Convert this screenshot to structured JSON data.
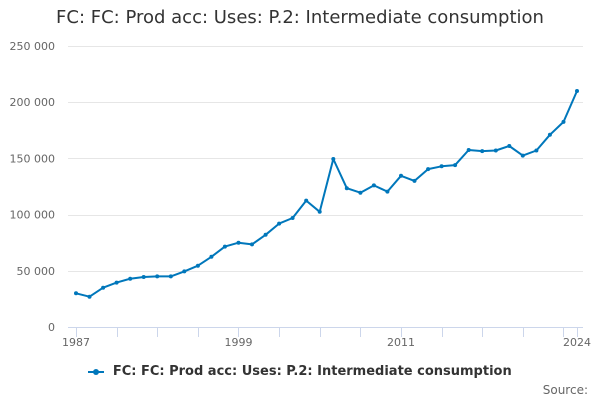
{
  "chart_data": {
    "type": "line",
    "title": "FC: FC: Prod acc: Uses: P.2: Intermediate consumption",
    "xlabel": "",
    "ylabel": "",
    "ylim": [
      0,
      250000
    ],
    "yticks": [
      0,
      50000,
      100000,
      150000,
      200000,
      250000
    ],
    "ytick_labels": [
      "0",
      "50 000",
      "100 000",
      "150 000",
      "200 000",
      "250 000"
    ],
    "xlim": [
      1987,
      2024
    ],
    "xticks": [
      1987,
      1999,
      2011,
      2024
    ],
    "xtick_labels": [
      "1987",
      "1999",
      "2011",
      "2024"
    ],
    "grid": true,
    "legend_position": "bottom",
    "series": [
      {
        "name": "FC: FC: Prod acc: Uses: P.2: Intermediate consumption",
        "color": "#0077bb",
        "x": [
          1987,
          1988,
          1989,
          1990,
          1991,
          1992,
          1993,
          1994,
          1995,
          1996,
          1997,
          1998,
          1999,
          2000,
          2001,
          2002,
          2003,
          2004,
          2005,
          2006,
          2007,
          2008,
          2009,
          2010,
          2011,
          2012,
          2013,
          2014,
          2015,
          2016,
          2017,
          2018,
          2019,
          2020,
          2021,
          2022,
          2023,
          2024
        ],
        "values": [
          30000,
          27000,
          35000,
          39500,
          43000,
          44500,
          45000,
          45000,
          49500,
          54500,
          62500,
          71500,
          75000,
          73500,
          82000,
          92000,
          97000,
          112500,
          102500,
          149500,
          123500,
          119500,
          126000,
          120500,
          134500,
          130000,
          140500,
          143000,
          144000,
          157500,
          156500,
          157000,
          161000,
          152500,
          157000,
          171000,
          182500,
          210000
        ]
      }
    ]
  },
  "legend": {
    "label": "FC: FC: Prod acc: Uses: P.2: Intermediate consumption"
  },
  "source": {
    "label": "Source:"
  }
}
